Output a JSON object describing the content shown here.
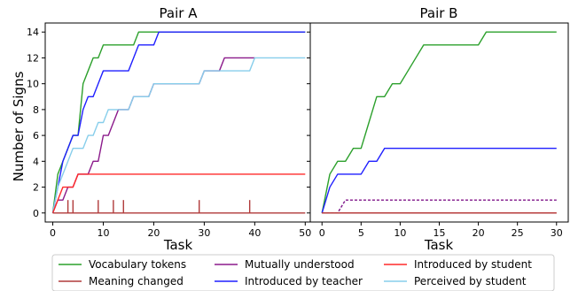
{
  "chart_data": {
    "type": "line",
    "shared_ylabel": "Number of Signs",
    "legend": {
      "placement": "bottom",
      "entries": [
        {
          "name": "Vocabulary tokens",
          "color": "#2ca02c"
        },
        {
          "name": "Meaning changed",
          "color": "#b03a3a"
        },
        {
          "name": "Mutually understood",
          "color": "#8b1a8b"
        },
        {
          "name": "Introduced by teacher",
          "color": "#1f1fff"
        },
        {
          "name": "Introduced by student",
          "color": "#ff2a2a"
        },
        {
          "name": "Perceived by student",
          "color": "#87ceeb"
        }
      ]
    },
    "panels": [
      {
        "title": "Pair A",
        "xlabel": "Task",
        "xlim": [
          -1.5,
          51
        ],
        "ylim": [
          -0.7,
          14.7
        ],
        "xticks": [
          0,
          10,
          20,
          30,
          40,
          50
        ],
        "yticks": [
          0,
          2,
          4,
          6,
          8,
          10,
          12,
          14
        ],
        "show_ytick_labels": true,
        "meaning_changed_at": [
          3,
          4,
          9,
          12,
          14,
          29,
          39
        ],
        "series": [
          {
            "name": "Vocabulary tokens",
            "color": "#2ca02c",
            "x": [
              0,
              1,
              2,
              3,
              4,
              5,
              6,
              7,
              8,
              9,
              10,
              13,
              16,
              17,
              20,
              50
            ],
            "y": [
              0,
              3,
              4,
              5,
              6,
              6,
              10,
              11,
              12,
              12,
              13,
              13,
              13,
              14,
              14,
              14
            ]
          },
          {
            "name": "Introduced by teacher",
            "color": "#1f1fff",
            "x": [
              0,
              1,
              2,
              3,
              4,
              5,
              6,
              7,
              8,
              9,
              10,
              15,
              16,
              17,
              19,
              20,
              21,
              50
            ],
            "y": [
              0,
              2,
              4,
              5,
              6,
              6,
              8,
              9,
              9,
              10,
              11,
              11,
              12,
              13,
              13,
              13,
              14,
              14
            ]
          },
          {
            "name": "Mutually understood",
            "color": "#8b1a8b",
            "x": [
              0,
              1,
              2,
              3,
              4,
              5,
              6,
              7,
              8,
              9,
              10,
              11,
              12,
              13,
              15,
              16,
              17,
              19,
              20,
              21,
              29,
              30,
              33,
              34,
              40
            ],
            "y": [
              0,
              1,
              1,
              2,
              2,
              3,
              3,
              3,
              4,
              4,
              6,
              6,
              7,
              8,
              8,
              9,
              9,
              9,
              10,
              10,
              10,
              11,
              11,
              12,
              12
            ]
          },
          {
            "name": "Perceived by student",
            "color": "#87ceeb",
            "x": [
              0,
              1,
              2,
              3,
              4,
              5,
              6,
              7,
              8,
              9,
              10,
              11,
              12,
              13,
              15,
              16,
              17,
              19,
              20,
              21,
              29,
              30,
              33,
              34,
              39,
              40,
              50
            ],
            "y": [
              0,
              2,
              3,
              4,
              5,
              5,
              5,
              6,
              6,
              7,
              7,
              8,
              8,
              8,
              8,
              9,
              9,
              9,
              10,
              10,
              10,
              11,
              11,
              11,
              11,
              12,
              12
            ]
          },
          {
            "name": "Introduced by student",
            "color": "#ff2a2a",
            "x": [
              0,
              1,
              2,
              3,
              4,
              5,
              6,
              50
            ],
            "y": [
              0,
              1,
              2,
              2,
              2,
              3,
              3,
              3
            ]
          }
        ]
      },
      {
        "title": "Pair B",
        "xlabel": "Task",
        "xlim": [
          -1.5,
          31.5
        ],
        "ylim": [
          -0.7,
          14.7
        ],
        "xticks": [
          0,
          5,
          10,
          15,
          20,
          25,
          30
        ],
        "yticks": [
          0,
          2,
          4,
          6,
          8,
          10,
          12,
          14
        ],
        "show_ytick_labels": false,
        "meaning_changed_at": [],
        "series": [
          {
            "name": "Vocabulary tokens",
            "color": "#2ca02c",
            "x": [
              0,
              1,
              2,
              3,
              4,
              5,
              6,
              7,
              8,
              9,
              10,
              11,
              12,
              13,
              20,
              21,
              30
            ],
            "y": [
              0,
              3,
              4,
              4,
              5,
              5,
              7,
              9,
              9,
              10,
              10,
              11,
              12,
              13,
              13,
              14,
              14
            ]
          },
          {
            "name": "Introduced by teacher",
            "color": "#1f1fff",
            "x": [
              0,
              1,
              2,
              5,
              6,
              7,
              8,
              30
            ],
            "y": [
              0,
              2,
              3,
              3,
              4,
              4,
              5,
              5
            ]
          },
          {
            "name": "Perceived by student",
            "color": "#87ceeb",
            "dashed": true,
            "x": [
              0,
              1,
              2,
              3,
              30
            ],
            "y": [
              0,
              0,
              0,
              1,
              1
            ]
          },
          {
            "name": "Mutually understood",
            "color": "#8b1a8b",
            "dashed": true,
            "x": [
              0,
              1,
              2,
              3,
              30
            ],
            "y": [
              0,
              0,
              0,
              1,
              1
            ]
          },
          {
            "name": "Introduced by student",
            "color": "#ff2a2a",
            "x": [
              0,
              30
            ],
            "y": [
              0,
              0
            ]
          },
          {
            "name": "Meaning changed",
            "color": "#b03a3a",
            "x": [
              0,
              30
            ],
            "y": [
              0,
              0
            ]
          }
        ]
      }
    ]
  }
}
